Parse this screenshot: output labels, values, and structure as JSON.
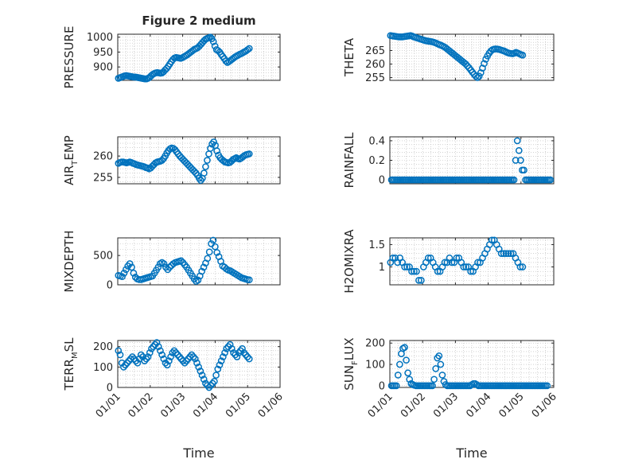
{
  "figure_title": "Figure 2 medium",
  "colors": {
    "marker": "#0072BD",
    "axis": "#262626",
    "grid": "#b8b8b8",
    "background": "#ffffff"
  },
  "chart_data": [
    {
      "type": "scatter",
      "id": "pressure",
      "ylabel": {
        "base": "PRESSURE",
        "sub": "",
        "tail": ""
      },
      "title": "Figure 2 medium",
      "xlim": [
        0,
        5
      ],
      "ylim": [
        855,
        1010
      ],
      "yticks": [
        900,
        950,
        1000
      ],
      "xticks": [],
      "xtick_labels": [],
      "y": [
        862,
        864,
        866,
        868,
        870,
        871,
        870,
        869,
        868,
        867,
        866,
        866,
        865,
        864,
        863,
        862,
        861,
        860,
        860,
        862,
        865,
        870,
        875,
        878,
        880,
        881,
        880,
        879,
        880,
        884,
        890,
        895,
        902,
        910,
        918,
        925,
        930,
        932,
        931,
        930,
        929,
        931,
        934,
        937,
        940,
        944,
        948,
        952,
        956,
        960,
        962,
        965,
        970,
        976,
        982,
        988,
        993,
        996,
        998,
        1000,
        995,
        985,
        970,
        958,
        955,
        950,
        942,
        935,
        928,
        920,
        915,
        918,
        922,
        926,
        930,
        934,
        937,
        940,
        943,
        945,
        948,
        951,
        954,
        958,
        962
      ]
    },
    {
      "type": "scatter",
      "id": "theta",
      "ylabel": {
        "base": "THETA",
        "sub": "",
        "tail": ""
      },
      "xlim": [
        0,
        5
      ],
      "ylim": [
        254,
        271
      ],
      "yticks": [
        255,
        260,
        265
      ],
      "xticks": [],
      "xtick_labels": [],
      "y": [
        270.5,
        270.4,
        270.3,
        270.2,
        270.1,
        270.0,
        270.0,
        270.0,
        270.1,
        270.2,
        270.3,
        270.4,
        270.5,
        270.3,
        270.0,
        269.8,
        269.6,
        269.4,
        269.2,
        269.0,
        268.8,
        268.6,
        268.5,
        268.4,
        268.3,
        268.2,
        268.0,
        267.8,
        267.5,
        267.2,
        267.0,
        266.7,
        266.4,
        266.0,
        265.5,
        265.0,
        264.5,
        264.0,
        263.5,
        263.0,
        262.5,
        262.0,
        261.5,
        261.0,
        260.5,
        260.0,
        259.3,
        258.6,
        257.8,
        257.0,
        256.2,
        255.5,
        255.0,
        255.5,
        256.8,
        258.5,
        260.2,
        261.8,
        263.0,
        264.0,
        264.8,
        265.3,
        265.5,
        265.6,
        265.5,
        265.4,
        265.2,
        265.0,
        264.8,
        264.5,
        264.2,
        264.0,
        263.9,
        263.8,
        264.0,
        264.3,
        264.1,
        263.8,
        263.5,
        263.3
      ]
    },
    {
      "type": "scatter",
      "id": "air_temp",
      "ylabel": {
        "base": "AIR",
        "sub": "T",
        "tail": "EMP"
      },
      "xlim": [
        0,
        5
      ],
      "ylim": [
        253.5,
        264.5
      ],
      "yticks": [
        255,
        260
      ],
      "xticks": [],
      "xtick_labels": [],
      "y": [
        258.3,
        258.5,
        258.6,
        258.6,
        258.5,
        258.4,
        258.5,
        258.6,
        258.5,
        258.3,
        258.2,
        258.0,
        257.9,
        257.8,
        257.7,
        257.6,
        257.5,
        257.3,
        257.2,
        257.0,
        257.2,
        257.6,
        258.0,
        258.4,
        258.6,
        258.7,
        258.8,
        259.0,
        259.4,
        260.0,
        260.7,
        261.3,
        261.7,
        261.9,
        261.8,
        261.5,
        261.0,
        260.5,
        260.0,
        259.6,
        259.2,
        258.8,
        258.4,
        258.0,
        257.6,
        257.2,
        256.8,
        256.4,
        256.0,
        255.5,
        254.8,
        254.3,
        254.8,
        256.0,
        257.5,
        259.0,
        260.5,
        261.8,
        262.8,
        263.3,
        262.5,
        261.2,
        260.2,
        259.6,
        259.2,
        258.9,
        258.6,
        258.5,
        258.4,
        258.5,
        258.8,
        259.2,
        259.4,
        259.6,
        259.4,
        259.3,
        259.5,
        259.8,
        260.1,
        260.3,
        260.4,
        260.5
      ]
    },
    {
      "type": "scatter",
      "id": "rainfall",
      "ylabel": {
        "base": "RAINFALL",
        "sub": "",
        "tail": ""
      },
      "xlim": [
        0,
        5
      ],
      "ylim": [
        -0.04,
        0.44
      ],
      "yticks": [
        0,
        0.2,
        0.4
      ],
      "ytick_labels": [
        "0",
        "0.2",
        "0.4"
      ],
      "xticks": [],
      "xtick_labels": [],
      "x_start": 0.05,
      "x_step": 0.0505,
      "y": [
        0,
        0,
        0,
        0,
        0,
        0,
        0,
        0,
        0,
        0,
        0,
        0,
        0,
        0,
        0,
        0,
        0,
        0,
        0,
        0,
        0,
        0,
        0,
        0,
        0,
        0,
        0,
        0,
        0,
        0,
        0,
        0,
        0,
        0,
        0,
        0,
        0,
        0,
        0,
        0,
        0,
        0,
        0,
        0,
        0,
        0,
        0,
        0,
        0,
        0,
        0,
        0,
        0,
        0,
        0,
        0,
        0,
        0,
        0,
        0,
        0,
        0,
        0,
        0,
        0,
        0,
        0,
        0,
        0,
        0,
        0,
        0,
        0,
        0,
        0,
        0.2,
        0.4,
        0.3,
        0.2,
        0.1,
        0.1,
        0,
        0,
        0,
        0,
        0,
        0,
        0,
        0,
        0,
        0,
        0,
        0,
        0,
        0,
        0,
        0
      ]
    },
    {
      "type": "scatter",
      "id": "mixdepth",
      "ylabel": {
        "base": "MIXDEPTH",
        "sub": "",
        "tail": ""
      },
      "xlim": [
        0,
        5
      ],
      "ylim": [
        0,
        800
      ],
      "yticks": [
        0,
        500
      ],
      "xticks": [],
      "xtick_labels": [],
      "y": [
        160,
        150,
        140,
        200,
        260,
        320,
        360,
        300,
        200,
        130,
        100,
        90,
        90,
        100,
        110,
        120,
        130,
        140,
        150,
        200,
        250,
        300,
        360,
        380,
        360,
        300,
        260,
        300,
        330,
        360,
        380,
        390,
        400,
        410,
        380,
        340,
        300,
        250,
        200,
        150,
        100,
        60,
        80,
        150,
        230,
        300,
        370,
        450,
        560,
        700,
        760,
        650,
        550,
        480,
        400,
        320,
        300,
        270,
        250,
        240,
        220,
        200,
        180,
        160,
        140,
        120,
        110,
        100,
        90,
        85
      ]
    },
    {
      "type": "scatter",
      "id": "h2omixra",
      "ylabel": {
        "base": "H2OMIXRA",
        "sub": "",
        "tail": ""
      },
      "xlim": [
        0,
        5
      ],
      "ylim": [
        0.6,
        1.65
      ],
      "yticks": [
        1,
        1.5
      ],
      "xticks": [],
      "xtick_labels": [],
      "y": [
        1.1,
        1.2,
        1.2,
        1.1,
        1.2,
        1.1,
        1.0,
        1.0,
        1.0,
        0.9,
        0.9,
        0.9,
        0.7,
        0.7,
        1.0,
        1.1,
        1.2,
        1.2,
        1.1,
        1.0,
        0.9,
        0.9,
        1.0,
        1.1,
        1.1,
        1.2,
        1.1,
        1.1,
        1.2,
        1.2,
        1.1,
        1.0,
        1.0,
        1.0,
        0.9,
        0.9,
        1.0,
        1.1,
        1.1,
        1.2,
        1.3,
        1.4,
        1.5,
        1.6,
        1.6,
        1.5,
        1.4,
        1.3,
        1.3,
        1.3,
        1.3,
        1.3,
        1.3,
        1.2,
        1.1,
        1.0,
        1.0
      ]
    },
    {
      "type": "scatter",
      "id": "terr_msl",
      "ylabel": {
        "base": "TERR",
        "sub": "M",
        "tail": "SL"
      },
      "xlim": [
        0,
        5
      ],
      "ylim": [
        0,
        230
      ],
      "yticks": [
        0,
        100,
        200
      ],
      "xticks": [
        0,
        1,
        2,
        3,
        4,
        5
      ],
      "xtick_labels": [
        "01/01",
        "01/02",
        "01/03",
        "01/04",
        "01/05",
        "01/06"
      ],
      "xlabel": "Time",
      "y": [
        180,
        160,
        120,
        100,
        110,
        120,
        130,
        140,
        150,
        140,
        130,
        120,
        140,
        160,
        150,
        130,
        140,
        150,
        170,
        190,
        200,
        210,
        220,
        200,
        180,
        160,
        140,
        120,
        110,
        130,
        150,
        170,
        180,
        170,
        160,
        150,
        140,
        130,
        120,
        130,
        140,
        150,
        160,
        150,
        140,
        120,
        100,
        80,
        60,
        40,
        20,
        10,
        0,
        10,
        20,
        30,
        60,
        90,
        110,
        130,
        150,
        170,
        190,
        200,
        210,
        190,
        170,
        160,
        150,
        170,
        180,
        190,
        170,
        160,
        150,
        140
      ]
    },
    {
      "type": "scatter",
      "id": "sun_flux",
      "ylabel": {
        "base": "SUN",
        "sub": "F",
        "tail": "LUX"
      },
      "xlim": [
        0,
        5
      ],
      "ylim": [
        -8,
        212
      ],
      "yticks": [
        0,
        100,
        200
      ],
      "xticks": [
        0,
        1,
        2,
        3,
        4,
        5
      ],
      "xtick_labels": [
        "01/01",
        "01/02",
        "01/03",
        "01/04",
        "01/05",
        "01/06"
      ],
      "xlabel": "Time",
      "x_start": 0.05,
      "x_step": 0.05,
      "y": [
        0,
        0,
        0,
        0,
        50,
        100,
        150,
        175,
        180,
        120,
        60,
        30,
        10,
        5,
        2,
        0,
        0,
        0,
        0,
        0,
        0,
        0,
        0,
        0,
        0,
        0,
        30,
        80,
        130,
        140,
        100,
        50,
        20,
        5,
        0,
        0,
        0,
        0,
        0,
        0,
        0,
        0,
        0,
        0,
        0,
        0,
        0,
        0,
        0,
        5,
        10,
        10,
        5,
        0,
        0,
        0,
        0,
        0,
        0,
        0,
        0,
        0,
        0,
        0,
        0,
        0,
        0,
        0,
        0,
        0,
        0,
        0,
        0,
        0,
        0,
        0,
        0,
        0,
        0,
        0,
        0,
        0,
        0,
        0,
        0,
        0,
        0,
        0,
        0,
        0,
        0,
        0,
        0,
        0,
        0,
        0
      ]
    }
  ]
}
